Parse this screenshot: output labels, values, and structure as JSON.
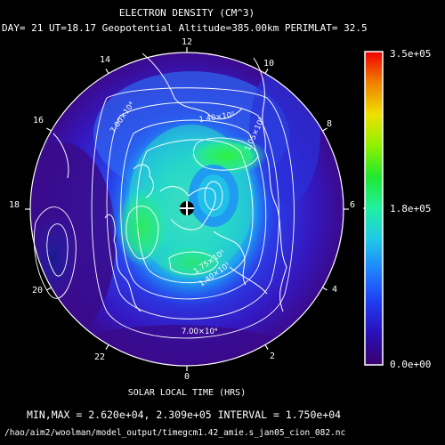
{
  "title": "ELECTRON DENSITY (CM^3)",
  "subtitle": "DAY= 21 UT=18.17 Geopotential Altitude=385.00km PERIMLAT= 32.5",
  "xlabel": "SOLAR LOCAL TIME (HRS)",
  "stats": "MIN,MAX =  2.620e+04, 2.309e+05 INTERVAL =  1.750e+04",
  "filepath": "/hao/aim2/woolman/model_output/timegcm1.42_amie.s_jan05_cion_082.nc",
  "hour_labels": [
    "12",
    "14",
    "16",
    "18",
    "20",
    "22",
    "0",
    "2",
    "4",
    "6",
    "8",
    "10"
  ],
  "colorbar": {
    "max_label": "3.5e+05",
    "mid_label": "1.8e+05",
    "min_label": "0.0e+00",
    "colors": [
      "#3a006e",
      "#2a10b8",
      "#1f3cf0",
      "#1f80ff",
      "#20c8e8",
      "#20f0a0",
      "#20e830",
      "#90f000",
      "#f0e000",
      "#f08000",
      "#f00000"
    ]
  },
  "contour_labels": [
    "7.00×10⁴",
    "1.40×10⁵",
    "1.05×10⁵",
    "1.75×10⁵",
    "1.40×10⁵",
    "7.00×10⁴"
  ],
  "map": {
    "min": 26200,
    "max": 230900,
    "interval": 17500,
    "scale_min": 0,
    "scale_max": 350000,
    "background_color": "#3a0a88",
    "pole_marker": "north-pole-cross"
  }
}
